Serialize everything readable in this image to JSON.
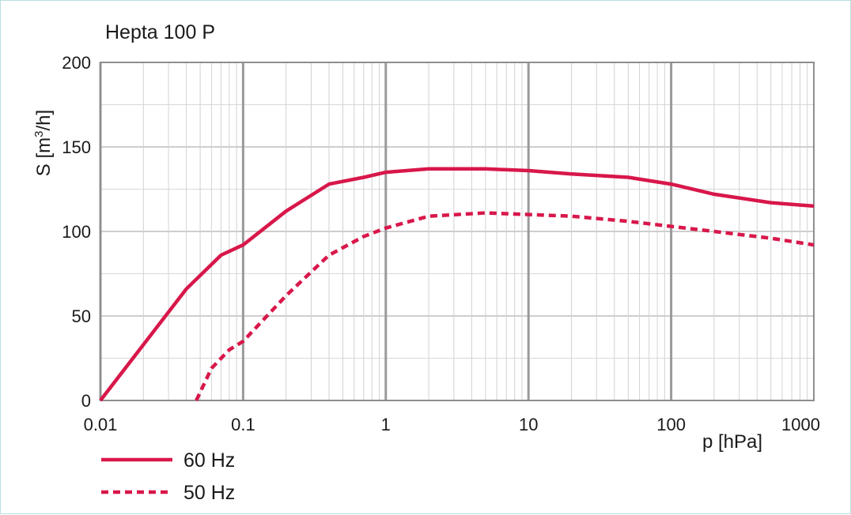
{
  "chart_data": {
    "type": "line",
    "title": "Hepta 100 P",
    "xlabel": "p [hPa]",
    "ylabel_base": "S [m",
    "ylabel_sup": "3",
    "ylabel_end": "/h]",
    "xscale": "log",
    "xlim": [
      0.01,
      1000
    ],
    "ylim": [
      0,
      200
    ],
    "xticks": [
      {
        "value": 0.01,
        "label": "0.01"
      },
      {
        "value": 0.1,
        "label": "0.1"
      },
      {
        "value": 1,
        "label": "1"
      },
      {
        "value": 10,
        "label": "10"
      },
      {
        "value": 100,
        "label": "100"
      },
      {
        "value": 1000,
        "label": "1000"
      }
    ],
    "yticks": [
      {
        "value": 0,
        "label": "0"
      },
      {
        "value": 50,
        "label": "50"
      },
      {
        "value": 100,
        "label": "100"
      },
      {
        "value": 150,
        "label": "150"
      },
      {
        "value": 200,
        "label": "200"
      }
    ],
    "grid": true,
    "legend_position": "bottom-left",
    "series": [
      {
        "name": "60 Hz",
        "style": "solid",
        "color": "#d8174a",
        "x": [
          0.01,
          0.02,
          0.04,
          0.07,
          0.1,
          0.2,
          0.4,
          0.7,
          1,
          2,
          5,
          10,
          20,
          50,
          100,
          200,
          500,
          1000
        ],
        "y": [
          0,
          33,
          66,
          86,
          92,
          112,
          128,
          132,
          135,
          137,
          137,
          136,
          134,
          132,
          128,
          122,
          117,
          115
        ]
      },
      {
        "name": "50 Hz",
        "style": "dashed",
        "color": "#d8174a",
        "x": [
          0.047,
          0.06,
          0.08,
          0.1,
          0.2,
          0.4,
          0.7,
          1,
          2,
          5,
          10,
          20,
          50,
          100,
          200,
          500,
          1000
        ],
        "y": [
          0,
          19,
          30,
          35,
          62,
          86,
          97,
          102,
          109,
          111,
          110,
          109,
          106,
          103,
          100,
          96,
          92
        ]
      }
    ]
  }
}
